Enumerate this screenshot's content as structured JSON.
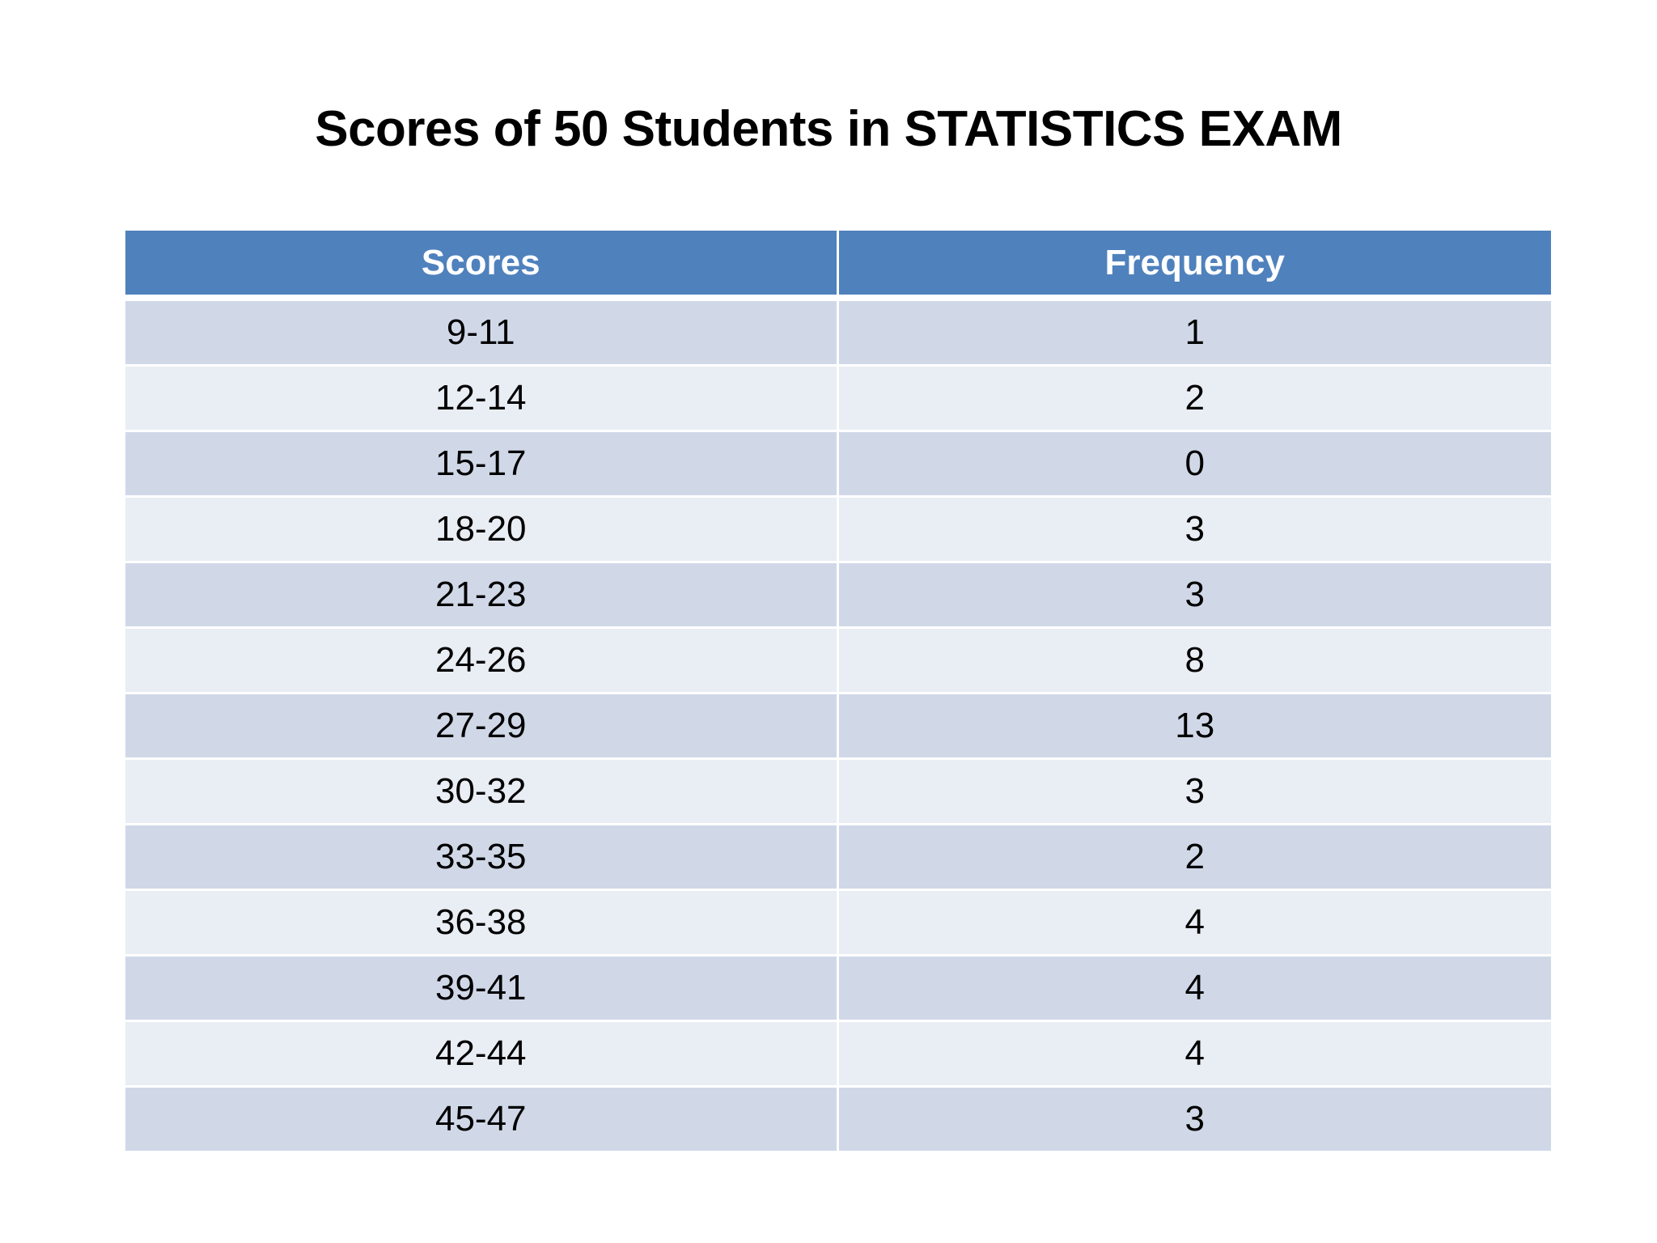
{
  "title": "Scores of 50 Students in STATISTICS EXAM",
  "table": {
    "headers": [
      "Scores",
      "Frequency"
    ],
    "rows": [
      [
        "9-11",
        "1"
      ],
      [
        "12-14",
        "2"
      ],
      [
        "15-17",
        "0"
      ],
      [
        "18-20",
        "3"
      ],
      [
        "21-23",
        "3"
      ],
      [
        "24-26",
        "8"
      ],
      [
        "27-29",
        "13"
      ],
      [
        "30-32",
        "3"
      ],
      [
        "33-35",
        "2"
      ],
      [
        "36-38",
        "4"
      ],
      [
        "39-41",
        "4"
      ],
      [
        "42-44",
        "4"
      ],
      [
        "45-47",
        "3"
      ]
    ]
  },
  "colors": {
    "header_bg": "#4f81bd",
    "row_dark": "#d0d8e8",
    "row_light": "#e9edf4"
  }
}
